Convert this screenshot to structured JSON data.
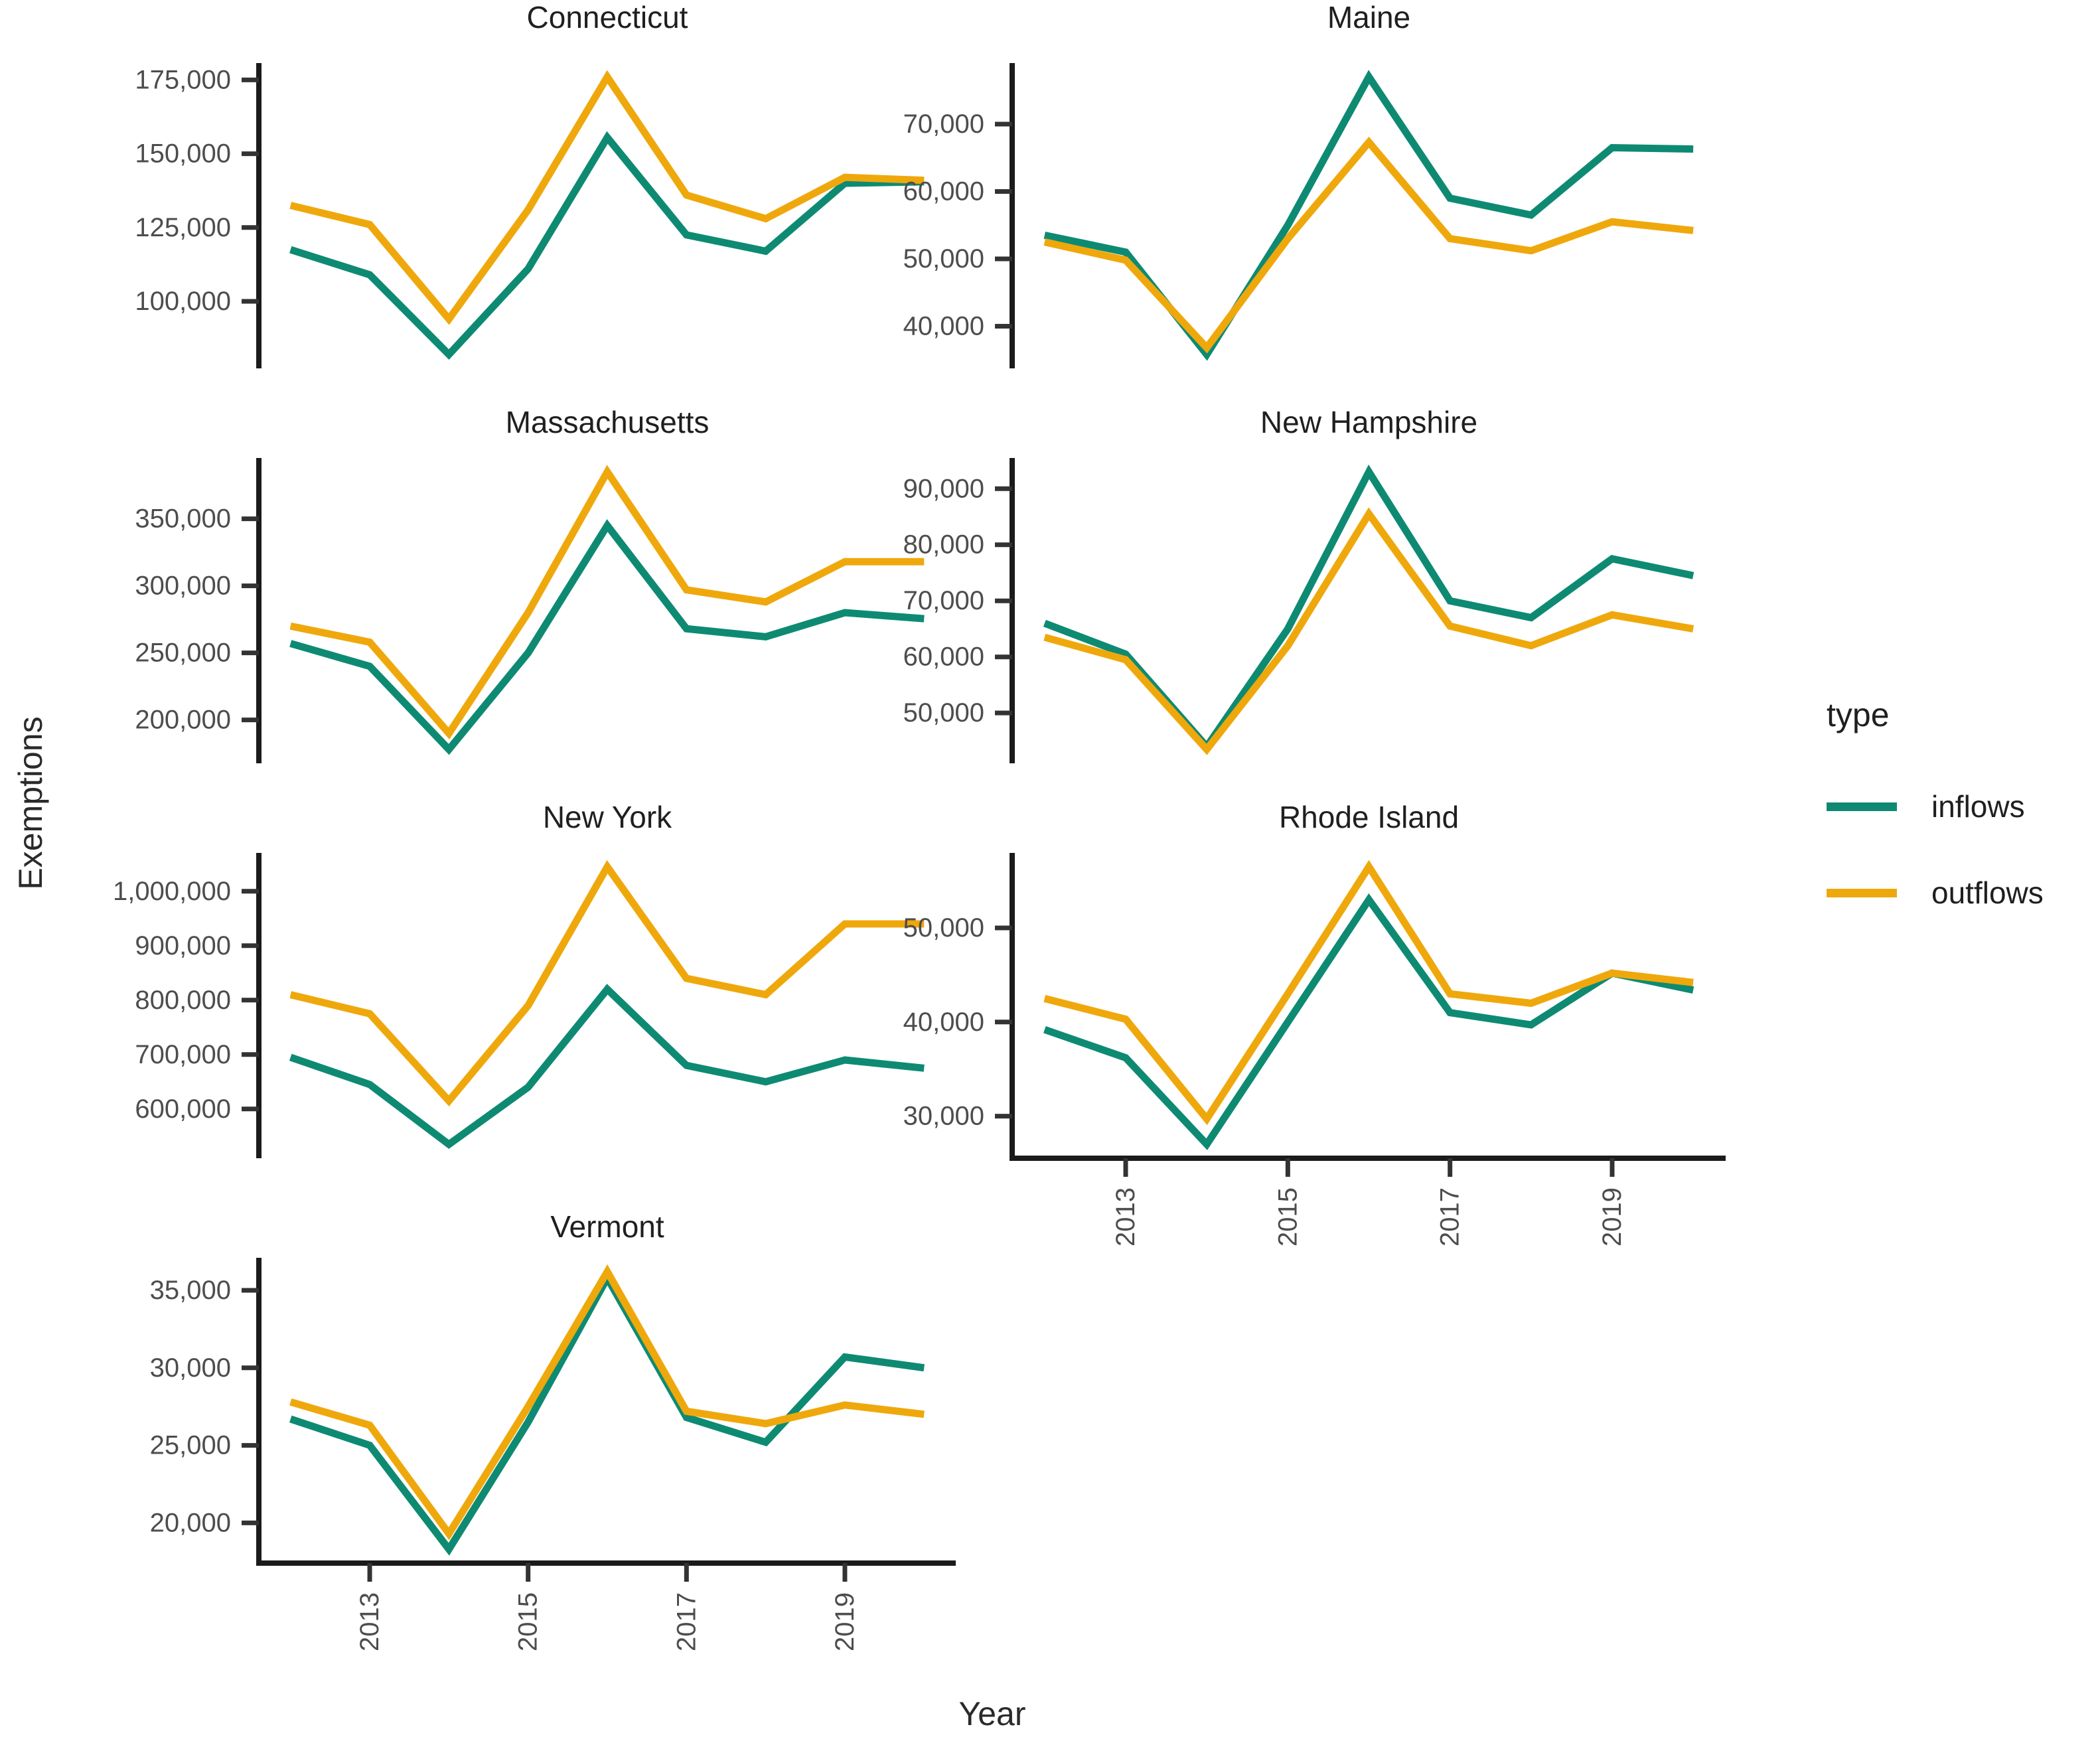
{
  "figure": {
    "background": "#FFFFFF"
  },
  "legend": {
    "title": "type",
    "entries": [
      {
        "label": "inflows"
      },
      {
        "label": "outflows"
      }
    ]
  },
  "style": {
    "axis_line_color": "#1b1b1b",
    "tick_mark_color": "#333333",
    "tick_label_color": "#4d4d4d",
    "facet_title_color": "#1f1f1f",
    "inflows_color": "#0E8A73",
    "outflows_color": "#EFA80C"
  },
  "chart_data": {
    "type": "line",
    "xlabel": "Year",
    "ylabel": "Exemptions",
    "x": [
      2012,
      2013,
      2014,
      2015,
      2016,
      2017,
      2018,
      2019,
      2020
    ],
    "x_ticks": [
      2013,
      2015,
      2017,
      2019
    ],
    "grid": false,
    "legend_position": "right",
    "colors": {
      "inflows": "#0E8A73",
      "outflows": "#EFA80C"
    },
    "facets": [
      {
        "title": "Connecticut",
        "y_ticks": [
          100000,
          125000,
          150000,
          175000
        ],
        "series": [
          {
            "name": "inflows",
            "values": [
              117500,
              109000,
              82000,
              111000,
              155500,
              122500,
              117000,
              140000,
              140500
            ]
          },
          {
            "name": "outflows",
            "values": [
              132500,
              126000,
              94000,
              131000,
              176000,
              136000,
              128000,
              142000,
              141000
            ]
          }
        ]
      },
      {
        "title": "Maine",
        "y_ticks": [
          40000,
          50000,
          60000,
          70000
        ],
        "series": [
          {
            "name": "inflows",
            "values": [
              53500,
              51000,
              35800,
              55000,
              77000,
              59000,
              56500,
              66500,
              66300
            ]
          },
          {
            "name": "outflows",
            "values": [
              52500,
              49800,
              36800,
              53000,
              67300,
              53000,
              51200,
              55500,
              54200
            ]
          }
        ]
      },
      {
        "title": "Massachusetts",
        "y_ticks": [
          200000,
          250000,
          300000,
          350000
        ],
        "series": [
          {
            "name": "inflows",
            "values": [
              257000,
              240000,
              178000,
              250000,
              345000,
              268000,
              262000,
              280000,
              275500
            ]
          },
          {
            "name": "outflows",
            "values": [
              270000,
              258000,
              190000,
              280000,
              385000,
              297000,
              288000,
              318000,
              318000
            ]
          }
        ]
      },
      {
        "title": "New Hampshire",
        "y_ticks": [
          50000,
          60000,
          70000,
          80000,
          90000
        ],
        "series": [
          {
            "name": "inflows",
            "values": [
              66000,
              60500,
              44000,
              65000,
              93000,
              70000,
              67000,
              77500,
              74500
            ]
          },
          {
            "name": "outflows",
            "values": [
              63500,
              59500,
              43500,
              62000,
              85500,
              65500,
              62000,
              67500,
              65000
            ]
          }
        ]
      },
      {
        "title": "New York",
        "y_ticks": [
          600000,
          700000,
          800000,
          900000,
          1000000
        ],
        "series": [
          {
            "name": "inflows",
            "values": [
              695000,
              645000,
              535000,
              640000,
              820000,
              680000,
              650000,
              690000,
              675000
            ]
          },
          {
            "name": "outflows",
            "values": [
              810000,
              775000,
              615000,
              790000,
              1045000,
              840000,
              810000,
              940000,
              940000
            ]
          }
        ]
      },
      {
        "title": "Rhode Island",
        "y_ticks": [
          30000,
          40000,
          50000
        ],
        "series": [
          {
            "name": "inflows",
            "values": [
              39200,
              36200,
              27000,
              40000,
              53000,
              41000,
              39700,
              45200,
              43400
            ]
          },
          {
            "name": "outflows",
            "values": [
              42500,
              40300,
              29700,
              43000,
              56500,
              43000,
              42000,
              45200,
              44200
            ]
          }
        ]
      },
      {
        "title": "Vermont",
        "y_ticks": [
          20000,
          25000,
          30000,
          35000
        ],
        "series": [
          {
            "name": "inflows",
            "values": [
              26700,
              25000,
              18300,
              26500,
              35800,
              26800,
              25200,
              30700,
              30000
            ]
          },
          {
            "name": "outflows",
            "values": [
              27800,
              26300,
              19300,
              27500,
              36200,
              27200,
              26400,
              27600,
              27000
            ]
          }
        ]
      }
    ]
  }
}
